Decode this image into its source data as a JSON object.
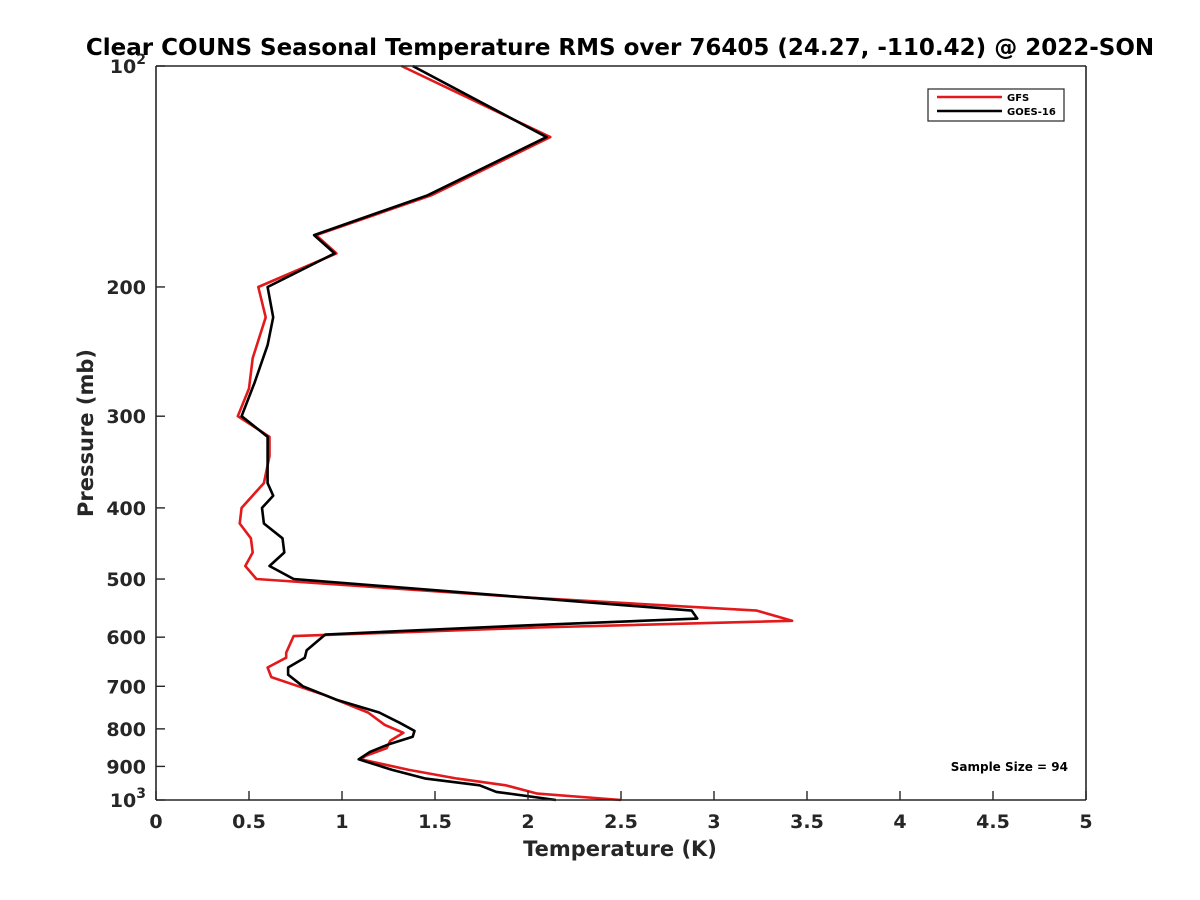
{
  "chart_data": {
    "type": "line",
    "title": "Clear COUNS Seasonal Temperature RMS over 76405 (24.27, -110.42) @ 2022-SON",
    "xlabel": "Temperature (K)",
    "ylabel": "Pressure (mb)",
    "xlim": [
      0,
      5
    ],
    "ylim": [
      100,
      1000
    ],
    "y_scale": "log",
    "y_reversed": true,
    "grid": false,
    "legend_position": "top-right",
    "x_ticks": [
      "0",
      "0.5",
      "1",
      "1.5",
      "2",
      "2.5",
      "3",
      "3.5",
      "4",
      "4.5",
      "5"
    ],
    "y_ticks": [
      {
        "value": 100,
        "label": "10",
        "sup": "2"
      },
      {
        "value": 200,
        "label": "200",
        "sup": ""
      },
      {
        "value": 300,
        "label": "300",
        "sup": ""
      },
      {
        "value": 400,
        "label": "400",
        "sup": ""
      },
      {
        "value": 500,
        "label": "500",
        "sup": ""
      },
      {
        "value": 600,
        "label": "600",
        "sup": ""
      },
      {
        "value": 700,
        "label": "700",
        "sup": ""
      },
      {
        "value": 800,
        "label": "800",
        "sup": ""
      },
      {
        "value": 900,
        "label": "900",
        "sup": ""
      },
      {
        "value": 1000,
        "label": "10",
        "sup": "3"
      }
    ],
    "series": [
      {
        "name": "GFS",
        "color": "#e31a1c",
        "points": [
          [
            1.32,
            100
          ],
          [
            2.12,
            125
          ],
          [
            1.48,
            150
          ],
          [
            0.86,
            170
          ],
          [
            0.97,
            180
          ],
          [
            0.55,
            200
          ],
          [
            0.59,
            220
          ],
          [
            0.52,
            250
          ],
          [
            0.5,
            275
          ],
          [
            0.44,
            300
          ],
          [
            0.61,
            320
          ],
          [
            0.61,
            340
          ],
          [
            0.58,
            370
          ],
          [
            0.46,
            400
          ],
          [
            0.45,
            420
          ],
          [
            0.51,
            440
          ],
          [
            0.52,
            460
          ],
          [
            0.48,
            480
          ],
          [
            0.54,
            500
          ],
          [
            2.0,
            530
          ],
          [
            3.23,
            552
          ],
          [
            3.42,
            570
          ],
          [
            2.05,
            582
          ],
          [
            0.74,
            598
          ],
          [
            0.7,
            630
          ],
          [
            0.7,
            640
          ],
          [
            0.6,
            660
          ],
          [
            0.62,
            680
          ],
          [
            0.91,
            720
          ],
          [
            1.14,
            760
          ],
          [
            1.23,
            790
          ],
          [
            1.33,
            810
          ],
          [
            1.26,
            830
          ],
          [
            1.24,
            850
          ],
          [
            1.13,
            870
          ],
          [
            1.1,
            880
          ],
          [
            1.36,
            910
          ],
          [
            1.62,
            935
          ],
          [
            1.88,
            955
          ],
          [
            2.05,
            980
          ],
          [
            2.5,
            1000
          ]
        ]
      },
      {
        "name": "GOES-16",
        "color": "#000000",
        "points": [
          [
            1.38,
            100
          ],
          [
            2.1,
            125
          ],
          [
            1.46,
            150
          ],
          [
            0.85,
            170
          ],
          [
            0.96,
            180
          ],
          [
            0.6,
            200
          ],
          [
            0.63,
            220
          ],
          [
            0.6,
            240
          ],
          [
            0.53,
            270
          ],
          [
            0.46,
            300
          ],
          [
            0.6,
            320
          ],
          [
            0.6,
            340
          ],
          [
            0.6,
            370
          ],
          [
            0.63,
            385
          ],
          [
            0.57,
            400
          ],
          [
            0.58,
            420
          ],
          [
            0.68,
            440
          ],
          [
            0.69,
            460
          ],
          [
            0.61,
            480
          ],
          [
            0.74,
            500
          ],
          [
            2.0,
            530
          ],
          [
            2.88,
            552
          ],
          [
            2.91,
            566
          ],
          [
            2.0,
            578
          ],
          [
            0.91,
            595
          ],
          [
            0.81,
            625
          ],
          [
            0.8,
            640
          ],
          [
            0.71,
            660
          ],
          [
            0.71,
            675
          ],
          [
            0.79,
            700
          ],
          [
            0.97,
            730
          ],
          [
            1.2,
            760
          ],
          [
            1.31,
            785
          ],
          [
            1.39,
            805
          ],
          [
            1.38,
            820
          ],
          [
            1.25,
            840
          ],
          [
            1.15,
            860
          ],
          [
            1.09,
            880
          ],
          [
            1.27,
            910
          ],
          [
            1.45,
            935
          ],
          [
            1.74,
            955
          ],
          [
            1.83,
            975
          ],
          [
            2.15,
            1000
          ]
        ]
      }
    ],
    "annotations": [
      "Sample Size = 94"
    ]
  }
}
